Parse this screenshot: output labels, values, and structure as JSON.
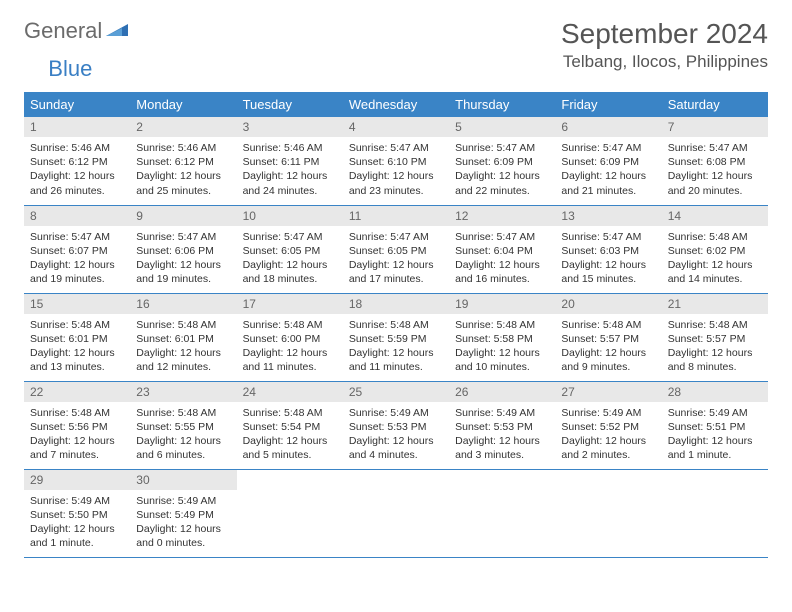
{
  "logo": {
    "general": "General",
    "blue": "Blue"
  },
  "title": "September 2024",
  "location": "Telbang, Ilocos, Philippines",
  "colors": {
    "header_bg": "#3a84c6",
    "header_text": "#ffffff",
    "daynum_bg": "#e8e8e8",
    "body_text": "#333333",
    "divider": "#3a84c6",
    "logo_grey": "#6b6b6b",
    "logo_blue": "#3a7fc4"
  },
  "weekdays": [
    "Sunday",
    "Monday",
    "Tuesday",
    "Wednesday",
    "Thursday",
    "Friday",
    "Saturday"
  ],
  "days": [
    {
      "n": 1,
      "sunrise": "5:46 AM",
      "sunset": "6:12 PM",
      "daylight": "12 hours and 26 minutes."
    },
    {
      "n": 2,
      "sunrise": "5:46 AM",
      "sunset": "6:12 PM",
      "daylight": "12 hours and 25 minutes."
    },
    {
      "n": 3,
      "sunrise": "5:46 AM",
      "sunset": "6:11 PM",
      "daylight": "12 hours and 24 minutes."
    },
    {
      "n": 4,
      "sunrise": "5:47 AM",
      "sunset": "6:10 PM",
      "daylight": "12 hours and 23 minutes."
    },
    {
      "n": 5,
      "sunrise": "5:47 AM",
      "sunset": "6:09 PM",
      "daylight": "12 hours and 22 minutes."
    },
    {
      "n": 6,
      "sunrise": "5:47 AM",
      "sunset": "6:09 PM",
      "daylight": "12 hours and 21 minutes."
    },
    {
      "n": 7,
      "sunrise": "5:47 AM",
      "sunset": "6:08 PM",
      "daylight": "12 hours and 20 minutes."
    },
    {
      "n": 8,
      "sunrise": "5:47 AM",
      "sunset": "6:07 PM",
      "daylight": "12 hours and 19 minutes."
    },
    {
      "n": 9,
      "sunrise": "5:47 AM",
      "sunset": "6:06 PM",
      "daylight": "12 hours and 19 minutes."
    },
    {
      "n": 10,
      "sunrise": "5:47 AM",
      "sunset": "6:05 PM",
      "daylight": "12 hours and 18 minutes."
    },
    {
      "n": 11,
      "sunrise": "5:47 AM",
      "sunset": "6:05 PM",
      "daylight": "12 hours and 17 minutes."
    },
    {
      "n": 12,
      "sunrise": "5:47 AM",
      "sunset": "6:04 PM",
      "daylight": "12 hours and 16 minutes."
    },
    {
      "n": 13,
      "sunrise": "5:47 AM",
      "sunset": "6:03 PM",
      "daylight": "12 hours and 15 minutes."
    },
    {
      "n": 14,
      "sunrise": "5:48 AM",
      "sunset": "6:02 PM",
      "daylight": "12 hours and 14 minutes."
    },
    {
      "n": 15,
      "sunrise": "5:48 AM",
      "sunset": "6:01 PM",
      "daylight": "12 hours and 13 minutes."
    },
    {
      "n": 16,
      "sunrise": "5:48 AM",
      "sunset": "6:01 PM",
      "daylight": "12 hours and 12 minutes."
    },
    {
      "n": 17,
      "sunrise": "5:48 AM",
      "sunset": "6:00 PM",
      "daylight": "12 hours and 11 minutes."
    },
    {
      "n": 18,
      "sunrise": "5:48 AM",
      "sunset": "5:59 PM",
      "daylight": "12 hours and 11 minutes."
    },
    {
      "n": 19,
      "sunrise": "5:48 AM",
      "sunset": "5:58 PM",
      "daylight": "12 hours and 10 minutes."
    },
    {
      "n": 20,
      "sunrise": "5:48 AM",
      "sunset": "5:57 PM",
      "daylight": "12 hours and 9 minutes."
    },
    {
      "n": 21,
      "sunrise": "5:48 AM",
      "sunset": "5:57 PM",
      "daylight": "12 hours and 8 minutes."
    },
    {
      "n": 22,
      "sunrise": "5:48 AM",
      "sunset": "5:56 PM",
      "daylight": "12 hours and 7 minutes."
    },
    {
      "n": 23,
      "sunrise": "5:48 AM",
      "sunset": "5:55 PM",
      "daylight": "12 hours and 6 minutes."
    },
    {
      "n": 24,
      "sunrise": "5:48 AM",
      "sunset": "5:54 PM",
      "daylight": "12 hours and 5 minutes."
    },
    {
      "n": 25,
      "sunrise": "5:49 AM",
      "sunset": "5:53 PM",
      "daylight": "12 hours and 4 minutes."
    },
    {
      "n": 26,
      "sunrise": "5:49 AM",
      "sunset": "5:53 PM",
      "daylight": "12 hours and 3 minutes."
    },
    {
      "n": 27,
      "sunrise": "5:49 AM",
      "sunset": "5:52 PM",
      "daylight": "12 hours and 2 minutes."
    },
    {
      "n": 28,
      "sunrise": "5:49 AM",
      "sunset": "5:51 PM",
      "daylight": "12 hours and 1 minute."
    },
    {
      "n": 29,
      "sunrise": "5:49 AM",
      "sunset": "5:50 PM",
      "daylight": "12 hours and 1 minute."
    },
    {
      "n": 30,
      "sunrise": "5:49 AM",
      "sunset": "5:49 PM",
      "daylight": "12 hours and 0 minutes."
    }
  ],
  "labels": {
    "sunrise": "Sunrise:",
    "sunset": "Sunset:",
    "daylight": "Daylight:"
  }
}
